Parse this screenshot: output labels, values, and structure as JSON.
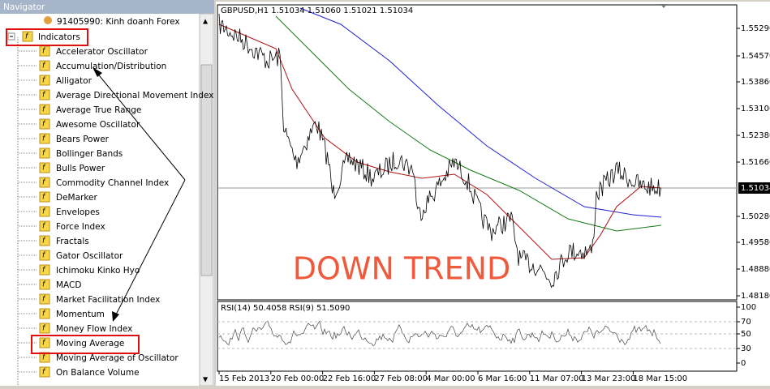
{
  "navigator": {
    "title": "Navigator",
    "account": "91405990: Kinh doanh Forex",
    "folder": "Indicators",
    "items": [
      "Accelerator Oscillator",
      "Accumulation/Distribution",
      "Alligator",
      "Average Directional Movement Index",
      "Average True Range",
      "Awesome Oscillator",
      "Bears Power",
      "Bollinger Bands",
      "Bulls Power",
      "Commodity Channel Index",
      "DeMarker",
      "Envelopes",
      "Force Index",
      "Fractals",
      "Gator Oscillator",
      "Ichimoku Kinko Hyo",
      "MACD",
      "Market Facilitation Index",
      "Momentum",
      "Money Flow Index",
      "Moving Average",
      "Moving Average of Oscillator",
      "On Balance Volume"
    ]
  },
  "chart": {
    "header": "GBPUSD,H1  1.51034 1.51060 1.51021 1.51034",
    "price_labels": [
      "1.55290",
      "1.54570",
      "1.53860",
      "1.53100",
      "1.52380",
      "1.51660",
      "1.50280",
      "1.49580",
      "1.48880",
      "1.48180"
    ],
    "current_price": "1.51034",
    "annotation": "DOWN TREND",
    "rsi_header": "RSI(14) 50.4058  RSI(9) 51.5090",
    "rsi_labels": [
      "100",
      "70",
      "50",
      "30",
      "0"
    ],
    "time_labels": [
      "15 Feb 2013",
      "20 Feb 00:00",
      "22 Feb 16:00",
      "27 Feb 08:00",
      "4 Mar 00:00",
      "6 Mar 16:00",
      "11 Mar 07:00",
      "13 Mar 23:00",
      "18 Mar 15:00"
    ]
  }
}
